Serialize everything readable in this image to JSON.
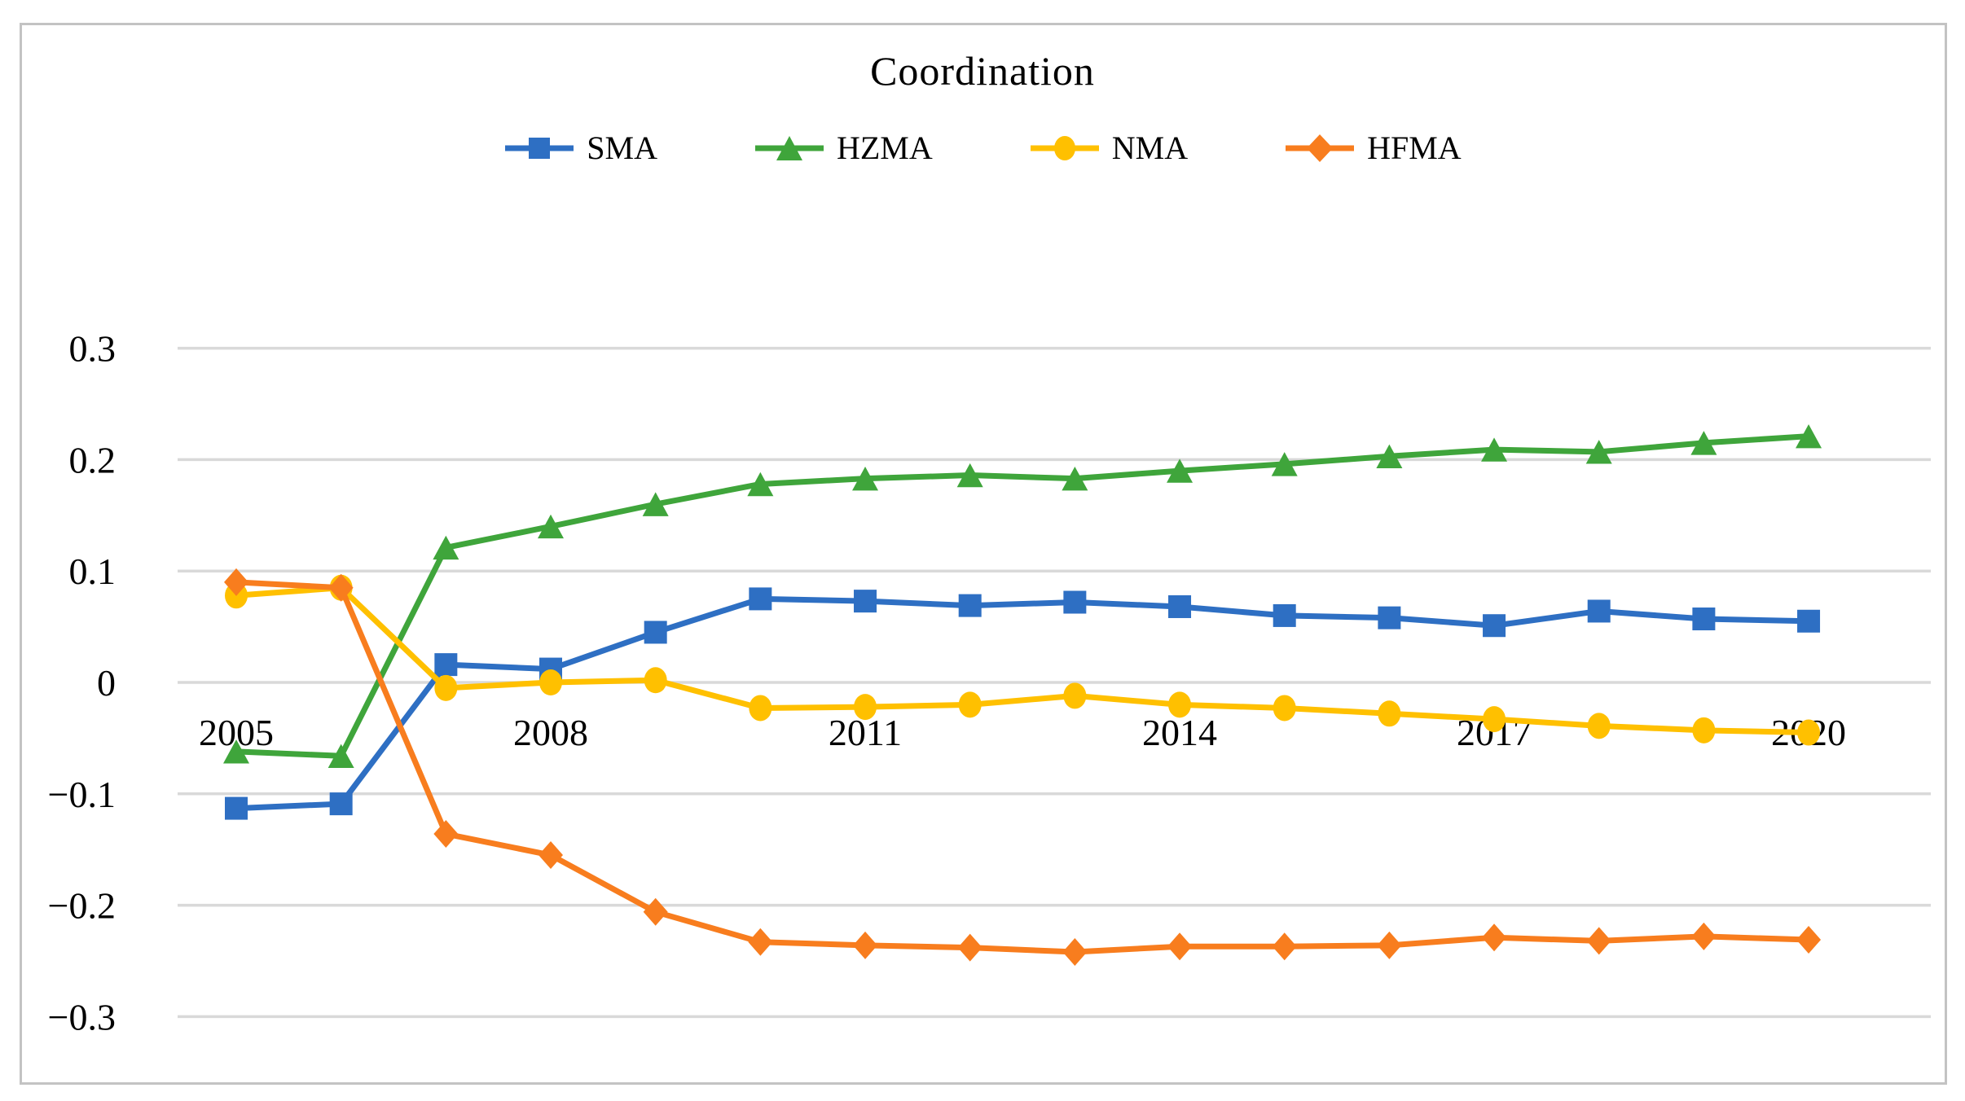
{
  "figure": {
    "title": "Coordination"
  },
  "chart_data": {
    "type": "line",
    "title": "Coordination",
    "x": [
      2005,
      2006,
      2007,
      2008,
      2009,
      2010,
      2011,
      2012,
      2013,
      2014,
      2015,
      2016,
      2017,
      2018,
      2019,
      2020
    ],
    "x_tick_labels": [
      "2005",
      "2008",
      "2011",
      "2014",
      "2017",
      "2020"
    ],
    "x_tick_years": [
      2005,
      2008,
      2011,
      2014,
      2017,
      2020
    ],
    "y_ticks": [
      0.3,
      0.2,
      0.1,
      0,
      -0.1,
      -0.2,
      -0.3
    ],
    "y_tick_labels": [
      "0.3",
      "0.2",
      "0.1",
      "0",
      "−0.1",
      "−0.2",
      "−0.3"
    ],
    "ylim": [
      -0.3,
      0.3
    ],
    "grid": true,
    "gridline_color": "#d9d9d9",
    "legend_position": "top",
    "series": [
      {
        "name": "SMA",
        "marker": "square",
        "color": "#2e6fc3",
        "values": [
          -0.113,
          -0.109,
          0.016,
          0.012,
          0.045,
          0.075,
          0.073,
          0.069,
          0.072,
          0.068,
          0.06,
          0.058,
          0.051,
          0.064,
          0.057,
          0.055
        ]
      },
      {
        "name": "HZMA",
        "marker": "triangle",
        "color": "#3fa53b",
        "values": [
          -0.062,
          -0.066,
          0.121,
          0.14,
          0.16,
          0.178,
          0.183,
          0.186,
          0.183,
          0.19,
          0.196,
          0.203,
          0.209,
          0.207,
          0.215,
          0.221
        ]
      },
      {
        "name": "NMA",
        "marker": "circle",
        "color": "#ffc000",
        "values": [
          0.078,
          0.085,
          -0.005,
          0.0,
          0.002,
          -0.023,
          -0.022,
          -0.02,
          -0.012,
          -0.02,
          -0.023,
          -0.028,
          -0.033,
          -0.039,
          -0.043,
          -0.045
        ]
      },
      {
        "name": "HFMA",
        "marker": "diamond",
        "color": "#f87d1e",
        "values": [
          0.09,
          0.085,
          -0.136,
          -0.155,
          -0.206,
          -0.233,
          -0.236,
          -0.238,
          -0.242,
          -0.237,
          -0.237,
          -0.236,
          -0.229,
          -0.232,
          -0.228,
          -0.231
        ]
      }
    ]
  }
}
